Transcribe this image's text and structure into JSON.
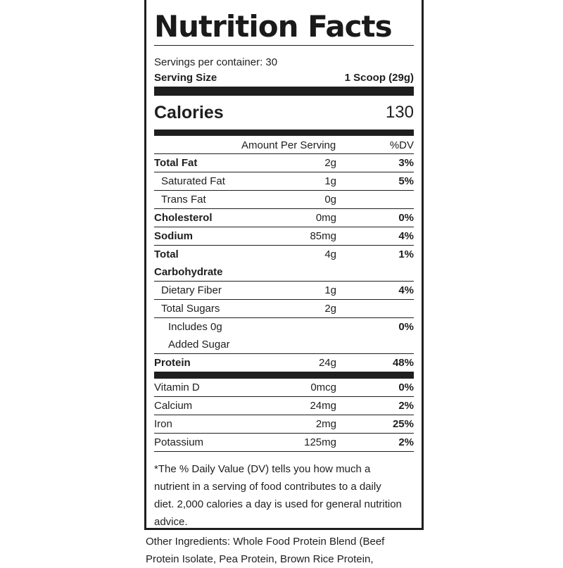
{
  "title": "Nutrition Facts",
  "servings_per_container": "Servings per container: 30",
  "serving_size": {
    "label": "Serving Size",
    "value": "1 Scoop (29g)"
  },
  "calories": {
    "label": "Calories",
    "value": "130"
  },
  "header": {
    "amount": "Amount Per Serving",
    "dv": "%DV"
  },
  "nutrients": [
    {
      "name": "Total Fat",
      "amount": "2g",
      "dv": "3%"
    },
    {
      "name": "Saturated Fat",
      "amount": "1g",
      "dv": "5%"
    },
    {
      "name": "Trans Fat",
      "amount": "0g",
      "dv": ""
    },
    {
      "name": "Cholesterol",
      "amount": "0mg",
      "dv": "0%"
    },
    {
      "name": "Sodium",
      "amount": "85mg",
      "dv": "4%"
    },
    {
      "name_line1": "Total",
      "name_line2": "Carbohydrate",
      "amount": "4g",
      "dv": "1%"
    },
    {
      "name": "Dietary Fiber",
      "amount": "1g",
      "dv": "4%"
    },
    {
      "name": "Total Sugars",
      "amount": "2g",
      "dv": ""
    },
    {
      "name_line1": "Includes 0g",
      "name_line2": "Added Sugar",
      "amount": "",
      "dv": "0%"
    },
    {
      "name": "Protein",
      "amount": "24g",
      "dv": "48%"
    }
  ],
  "vitamins": [
    {
      "name": "Vitamin D",
      "amount": "0mcg",
      "dv": "0%"
    },
    {
      "name": "Calcium",
      "amount": "24mg",
      "dv": "2%"
    },
    {
      "name": "Iron",
      "amount": "2mg",
      "dv": "25%"
    },
    {
      "name": "Potassium",
      "amount": "125mg",
      "dv": "2%"
    }
  ],
  "footnote": "*The % Daily Value (DV) tells you how much a nutrient in a serving of food contributes to a daily diet. 2,000 calories a day is used for general nutrition advice.",
  "ingredients": "Other Ingredients: Whole Food Protein Blend (Beef Protein Isolate, Pea Protein, Brown Rice Protein,"
}
